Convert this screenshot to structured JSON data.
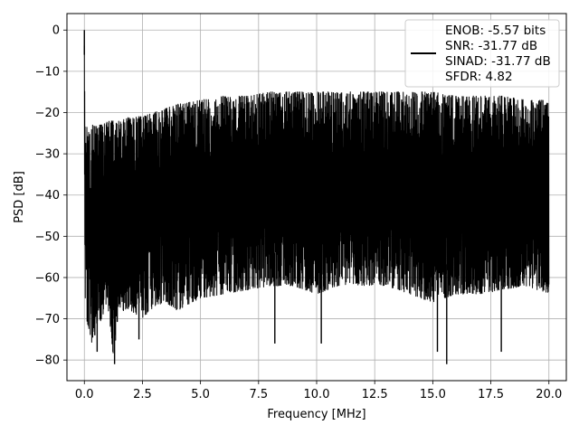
{
  "chart_data": {
    "type": "line",
    "title": "",
    "xlabel": "Frequency [MHz]",
    "ylabel": "PSD [dB]",
    "xlim": [
      -0.75,
      20.75
    ],
    "ylim": [
      -85,
      4
    ],
    "xticks": [
      0.0,
      2.5,
      5.0,
      7.5,
      10.0,
      12.5,
      15.0,
      17.5,
      20.0
    ],
    "xtick_labels": [
      "0.0",
      "2.5",
      "5.0",
      "7.5",
      "10.0",
      "12.5",
      "15.0",
      "17.5",
      "20.0"
    ],
    "yticks": [
      0,
      -10,
      -20,
      -30,
      -40,
      -50,
      -60,
      -70,
      -80
    ],
    "ytick_labels": [
      "0",
      "−10",
      "−20",
      "−30",
      "−40",
      "−50",
      "−60",
      "−70",
      "−80"
    ],
    "grid": true,
    "color": "#000000",
    "legend": {
      "placement": "top-right",
      "entries": [
        "ENOB: -5.57 bits",
        "SNR: -31.77 dB",
        "SINAD: -31.77 dB",
        "SFDR: 4.82"
      ]
    },
    "series": [
      {
        "x": [
          0.0,
          0.03,
          0.06,
          0.1,
          0.15,
          0.2,
          0.25,
          0.3,
          0.35,
          0.4,
          0.5,
          0.6,
          0.8,
          1.0,
          1.25,
          1.5,
          2.0,
          2.5,
          3.0,
          3.5,
          4.0,
          5.0,
          6.0,
          7.0,
          8.0,
          9.0,
          10.0,
          11.0,
          12.0,
          13.0,
          14.0,
          15.0,
          16.0,
          17.0,
          18.0,
          19.0,
          20.0
        ],
        "upper": [
          0.0,
          -22,
          -23,
          -23,
          -23,
          -25,
          -24,
          -24,
          -23,
          -23,
          -23,
          -23,
          -23,
          -22,
          -22,
          -22,
          -21,
          -21,
          -20,
          -19,
          -18,
          -17,
          -16,
          -16,
          -15,
          -15,
          -15,
          -15,
          -15,
          -15,
          -15,
          -15,
          -16,
          -16,
          -16,
          -17,
          -17
        ],
        "lower": [
          -45,
          -66,
          -66,
          -70,
          -72,
          -74,
          -74,
          -76,
          -75,
          -74,
          -72,
          -71,
          -70,
          -66,
          -80,
          -68,
          -68,
          -70,
          -67,
          -66,
          -68,
          -65,
          -64,
          -63,
          -62,
          -62,
          -64,
          -62,
          -62,
          -62,
          -64,
          -66,
          -64,
          -64,
          -63,
          -62,
          -64
        ],
        "spikes": [
          {
            "x": 0.0,
            "y": 0.0
          },
          {
            "x": 0.45,
            "y": -74
          },
          {
            "x": 0.55,
            "y": -78
          },
          {
            "x": 1.3,
            "y": -81
          },
          {
            "x": 2.35,
            "y": -75
          },
          {
            "x": 8.2,
            "y": -76
          },
          {
            "x": 10.2,
            "y": -76
          },
          {
            "x": 15.2,
            "y": -78
          },
          {
            "x": 15.6,
            "y": -81
          },
          {
            "x": 17.95,
            "y": -78
          }
        ]
      }
    ]
  }
}
